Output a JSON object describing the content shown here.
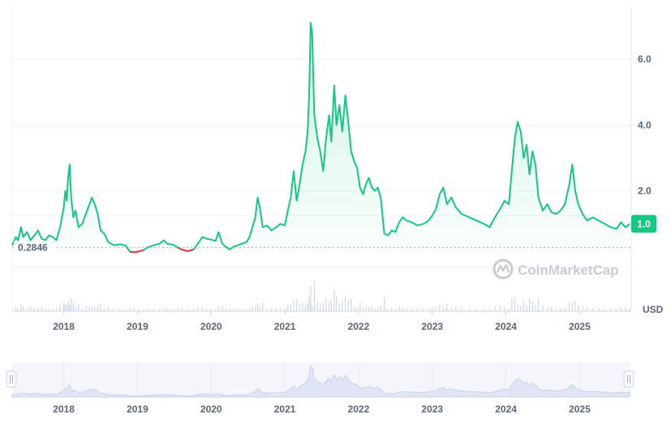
{
  "chart_data": {
    "type": "line",
    "currency_label": "USD",
    "watermark": "CoinMarketCap",
    "reference_line": {
      "value": 0.2846,
      "label": "0.2846"
    },
    "current_price": {
      "value": 1.0,
      "label": "1.0"
    },
    "ylim": [
      -0.1,
      7.6
    ],
    "y_ticks": [
      {
        "value": 2.0,
        "label": "2.0"
      },
      {
        "value": 4.0,
        "label": "4.0"
      },
      {
        "value": 6.0,
        "label": "6.0"
      }
    ],
    "xlim": [
      2017.3,
      2025.7
    ],
    "x_ticks": [
      {
        "value": 2018,
        "label": "2018"
      },
      {
        "value": 2019,
        "label": "2019"
      },
      {
        "value": 2020,
        "label": "2020"
      },
      {
        "value": 2021,
        "label": "2021"
      },
      {
        "value": 2022,
        "label": "2022"
      },
      {
        "value": 2023,
        "label": "2023"
      },
      {
        "value": 2024,
        "label": "2024"
      },
      {
        "value": 2025,
        "label": "2025"
      }
    ],
    "colors": {
      "up": "#16c784",
      "down": "#ea3943",
      "volume": "#cfd6e4",
      "navigator": "#e4e9f7"
    },
    "price_series": [
      [
        2017.3,
        0.35
      ],
      [
        2017.35,
        0.6
      ],
      [
        2017.38,
        0.5
      ],
      [
        2017.42,
        0.9
      ],
      [
        2017.45,
        0.6
      ],
      [
        2017.5,
        0.75
      ],
      [
        2017.55,
        0.5
      ],
      [
        2017.6,
        0.65
      ],
      [
        2017.65,
        0.8
      ],
      [
        2017.7,
        0.55
      ],
      [
        2017.75,
        0.5
      ],
      [
        2017.8,
        0.65
      ],
      [
        2017.85,
        0.6
      ],
      [
        2017.9,
        0.5
      ],
      [
        2017.95,
        0.9
      ],
      [
        2018.0,
        1.5
      ],
      [
        2018.02,
        2.0
      ],
      [
        2018.04,
        1.7
      ],
      [
        2018.06,
        2.4
      ],
      [
        2018.08,
        2.8
      ],
      [
        2018.1,
        1.8
      ],
      [
        2018.13,
        1.2
      ],
      [
        2018.16,
        1.4
      ],
      [
        2018.2,
        0.9
      ],
      [
        2018.25,
        1.0
      ],
      [
        2018.3,
        1.3
      ],
      [
        2018.35,
        1.6
      ],
      [
        2018.38,
        1.8
      ],
      [
        2018.42,
        1.6
      ],
      [
        2018.46,
        1.3
      ],
      [
        2018.5,
        0.8
      ],
      [
        2018.55,
        0.7
      ],
      [
        2018.6,
        0.45
      ],
      [
        2018.68,
        0.35
      ],
      [
        2018.76,
        0.38
      ],
      [
        2018.84,
        0.34
      ],
      [
        2018.9,
        0.15
      ],
      [
        2018.95,
        0.14
      ],
      [
        2019.02,
        0.16
      ],
      [
        2019.08,
        0.2
      ],
      [
        2019.15,
        0.3
      ],
      [
        2019.22,
        0.35
      ],
      [
        2019.3,
        0.4
      ],
      [
        2019.36,
        0.5
      ],
      [
        2019.4,
        0.4
      ],
      [
        2019.46,
        0.38
      ],
      [
        2019.5,
        0.35
      ],
      [
        2019.55,
        0.28
      ],
      [
        2019.6,
        0.22
      ],
      [
        2019.68,
        0.17
      ],
      [
        2019.76,
        0.22
      ],
      [
        2019.82,
        0.4
      ],
      [
        2019.88,
        0.6
      ],
      [
        2019.94,
        0.55
      ],
      [
        2020.0,
        0.52
      ],
      [
        2020.06,
        0.48
      ],
      [
        2020.1,
        0.75
      ],
      [
        2020.15,
        0.4
      ],
      [
        2020.2,
        0.3
      ],
      [
        2020.25,
        0.22
      ],
      [
        2020.3,
        0.3
      ],
      [
        2020.36,
        0.35
      ],
      [
        2020.42,
        0.4
      ],
      [
        2020.48,
        0.45
      ],
      [
        2020.52,
        0.6
      ],
      [
        2020.56,
        0.9
      ],
      [
        2020.6,
        1.2
      ],
      [
        2020.63,
        1.8
      ],
      [
        2020.66,
        1.5
      ],
      [
        2020.7,
        0.9
      ],
      [
        2020.76,
        0.95
      ],
      [
        2020.82,
        0.8
      ],
      [
        2020.88,
        0.9
      ],
      [
        2020.94,
        1.0
      ],
      [
        2021.0,
        0.95
      ],
      [
        2021.04,
        1.4
      ],
      [
        2021.08,
        1.8
      ],
      [
        2021.12,
        2.6
      ],
      [
        2021.16,
        1.7
      ],
      [
        2021.2,
        2.2
      ],
      [
        2021.24,
        2.8
      ],
      [
        2021.28,
        3.2
      ],
      [
        2021.31,
        3.8
      ],
      [
        2021.33,
        5.0
      ],
      [
        2021.35,
        7.1
      ],
      [
        2021.37,
        6.8
      ],
      [
        2021.4,
        4.3
      ],
      [
        2021.44,
        3.6
      ],
      [
        2021.48,
        3.2
      ],
      [
        2021.52,
        2.6
      ],
      [
        2021.56,
        3.6
      ],
      [
        2021.6,
        4.3
      ],
      [
        2021.63,
        3.5
      ],
      [
        2021.67,
        5.2
      ],
      [
        2021.7,
        4.0
      ],
      [
        2021.74,
        4.6
      ],
      [
        2021.78,
        3.8
      ],
      [
        2021.82,
        4.9
      ],
      [
        2021.86,
        4.1
      ],
      [
        2021.9,
        3.2
      ],
      [
        2021.94,
        2.9
      ],
      [
        2021.98,
        2.7
      ],
      [
        2022.02,
        2.1
      ],
      [
        2022.06,
        1.9
      ],
      [
        2022.1,
        2.2
      ],
      [
        2022.14,
        2.4
      ],
      [
        2022.18,
        2.1
      ],
      [
        2022.22,
        2.0
      ],
      [
        2022.26,
        2.1
      ],
      [
        2022.3,
        1.8
      ],
      [
        2022.35,
        0.7
      ],
      [
        2022.4,
        0.65
      ],
      [
        2022.45,
        0.8
      ],
      [
        2022.5,
        0.75
      ],
      [
        2022.55,
        1.05
      ],
      [
        2022.6,
        1.2
      ],
      [
        2022.65,
        1.1
      ],
      [
        2022.72,
        1.05
      ],
      [
        2022.8,
        0.95
      ],
      [
        2022.88,
        1.0
      ],
      [
        2022.95,
        1.1
      ],
      [
        2023.0,
        1.25
      ],
      [
        2023.05,
        1.45
      ],
      [
        2023.1,
        1.9
      ],
      [
        2023.15,
        2.1
      ],
      [
        2023.2,
        1.6
      ],
      [
        2023.26,
        1.8
      ],
      [
        2023.32,
        1.5
      ],
      [
        2023.4,
        1.3
      ],
      [
        2023.5,
        1.2
      ],
      [
        2023.6,
        1.1
      ],
      [
        2023.7,
        1.0
      ],
      [
        2023.78,
        0.9
      ],
      [
        2023.85,
        1.2
      ],
      [
        2023.92,
        1.45
      ],
      [
        2023.98,
        1.7
      ],
      [
        2024.04,
        1.6
      ],
      [
        2024.08,
        2.6
      ],
      [
        2024.12,
        3.6
      ],
      [
        2024.16,
        4.1
      ],
      [
        2024.2,
        3.8
      ],
      [
        2024.24,
        3.0
      ],
      [
        2024.28,
        3.4
      ],
      [
        2024.32,
        2.5
      ],
      [
        2024.36,
        3.2
      ],
      [
        2024.4,
        2.8
      ],
      [
        2024.44,
        1.8
      ],
      [
        2024.5,
        1.4
      ],
      [
        2024.56,
        1.6
      ],
      [
        2024.62,
        1.35
      ],
      [
        2024.68,
        1.3
      ],
      [
        2024.74,
        1.4
      ],
      [
        2024.8,
        1.6
      ],
      [
        2024.86,
        2.2
      ],
      [
        2024.9,
        2.8
      ],
      [
        2024.94,
        2.0
      ],
      [
        2024.98,
        1.6
      ],
      [
        2025.04,
        1.3
      ],
      [
        2025.1,
        1.1
      ],
      [
        2025.18,
        1.2
      ],
      [
        2025.26,
        1.1
      ],
      [
        2025.34,
        1.0
      ],
      [
        2025.42,
        0.9
      ],
      [
        2025.5,
        0.85
      ],
      [
        2025.56,
        1.05
      ],
      [
        2025.62,
        0.9
      ],
      [
        2025.68,
        1.0
      ]
    ]
  }
}
